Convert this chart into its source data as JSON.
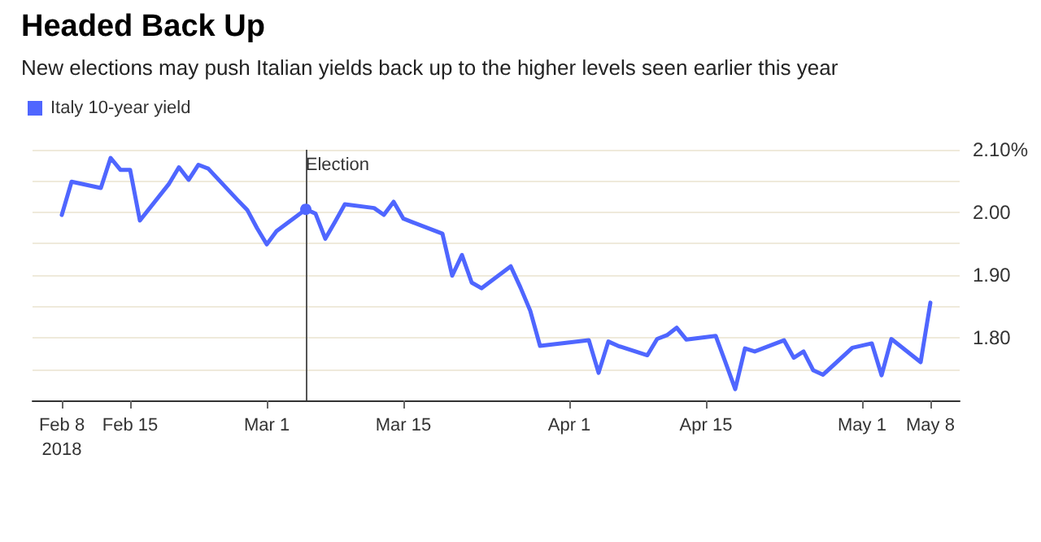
{
  "chart_data": {
    "type": "line",
    "title": "Headed Back Up",
    "subtitle": "New elections may push Italian yields back up to the higher levels seen earlier this year",
    "x": [
      "2018-02-08",
      "2018-02-09",
      "2018-02-12",
      "2018-02-13",
      "2018-02-14",
      "2018-02-15",
      "2018-02-16",
      "2018-02-19",
      "2018-02-20",
      "2018-02-21",
      "2018-02-22",
      "2018-02-23",
      "2018-02-26",
      "2018-02-27",
      "2018-02-28",
      "2018-03-01",
      "2018-03-02",
      "2018-03-05",
      "2018-03-06",
      "2018-03-07",
      "2018-03-08",
      "2018-03-09",
      "2018-03-12",
      "2018-03-13",
      "2018-03-14",
      "2018-03-15",
      "2018-03-16",
      "2018-03-19",
      "2018-03-20",
      "2018-03-21",
      "2018-03-22",
      "2018-03-23",
      "2018-03-26",
      "2018-03-27",
      "2018-03-28",
      "2018-03-29",
      "2018-04-03",
      "2018-04-04",
      "2018-04-05",
      "2018-04-06",
      "2018-04-09",
      "2018-04-10",
      "2018-04-11",
      "2018-04-12",
      "2018-04-13",
      "2018-04-16",
      "2018-04-17",
      "2018-04-18",
      "2018-04-19",
      "2018-04-20",
      "2018-04-23",
      "2018-04-24",
      "2018-04-25",
      "2018-04-26",
      "2018-04-27",
      "2018-04-30",
      "2018-05-02",
      "2018-05-03",
      "2018-05-04",
      "2018-05-07",
      "2018-05-08"
    ],
    "series": [
      {
        "name": "Italy 10-year yield",
        "color": "#4f66ff",
        "values": [
          1.996,
          2.049,
          2.039,
          2.087,
          2.068,
          2.068,
          1.987,
          2.046,
          2.072,
          2.052,
          2.076,
          2.07,
          2.02,
          2.004,
          1.975,
          1.949,
          1.97,
          2.005,
          1.998,
          1.958,
          1.985,
          2.013,
          2.007,
          1.996,
          2.017,
          1.99,
          1.984,
          1.966,
          1.899,
          1.932,
          1.888,
          1.879,
          1.914,
          1.88,
          1.843,
          1.787,
          1.796,
          1.744,
          1.794,
          1.787,
          1.772,
          1.798,
          1.804,
          1.816,
          1.797,
          1.803,
          1.761,
          1.718,
          1.783,
          1.778,
          1.796,
          1.768,
          1.778,
          1.748,
          1.741,
          1.784,
          1.791,
          1.74,
          1.798,
          1.761,
          1.856
        ]
      }
    ],
    "ylim": [
      1.7,
      2.1
    ],
    "yticks": [
      {
        "value": 1.75,
        "label": null
      },
      {
        "value": 1.8,
        "label": "1.80"
      },
      {
        "value": 1.85,
        "label": null
      },
      {
        "value": 1.9,
        "label": "1.90"
      },
      {
        "value": 1.95,
        "label": null
      },
      {
        "value": 2.0,
        "label": "2.00"
      },
      {
        "value": 2.05,
        "label": null
      },
      {
        "value": 2.1,
        "label": "2.10%"
      }
    ],
    "xlim": [
      "2018-02-05",
      "2018-05-11"
    ],
    "xticks": [
      {
        "value": "2018-02-08",
        "label": "Feb 8\n2018"
      },
      {
        "value": "2018-02-15",
        "label": "Feb 15"
      },
      {
        "value": "2018-03-01",
        "label": "Mar 1"
      },
      {
        "value": "2018-03-15",
        "label": "Mar 15"
      },
      {
        "value": "2018-04-01",
        "label": "Apr 1"
      },
      {
        "value": "2018-04-15",
        "label": "Apr 15"
      },
      {
        "value": "2018-05-01",
        "label": "May 1"
      },
      {
        "value": "2018-05-08",
        "label": "May 8"
      }
    ],
    "ref_lines": [
      {
        "axis": "x",
        "value": "2018-03-05",
        "label": "Election",
        "color": "#555555"
      }
    ],
    "grid": "y",
    "legend": "top left",
    "marker": "none",
    "line_style": "solid"
  }
}
